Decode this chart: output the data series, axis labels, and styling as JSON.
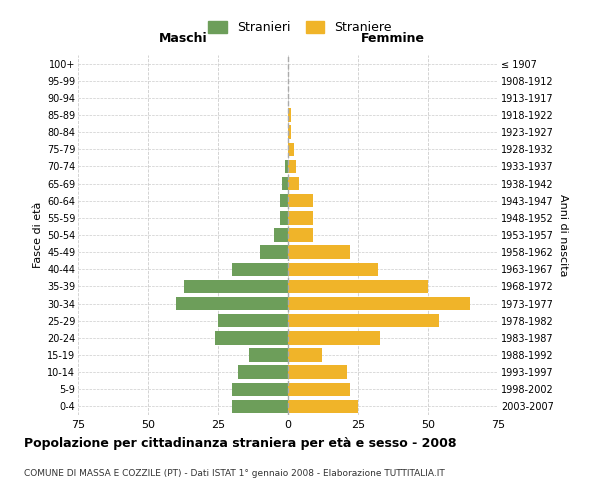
{
  "age_groups": [
    "0-4",
    "5-9",
    "10-14",
    "15-19",
    "20-24",
    "25-29",
    "30-34",
    "35-39",
    "40-44",
    "45-49",
    "50-54",
    "55-59",
    "60-64",
    "65-69",
    "70-74",
    "75-79",
    "80-84",
    "85-89",
    "90-94",
    "95-99",
    "100+"
  ],
  "birth_years": [
    "2003-2007",
    "1998-2002",
    "1993-1997",
    "1988-1992",
    "1983-1987",
    "1978-1982",
    "1973-1977",
    "1968-1972",
    "1963-1967",
    "1958-1962",
    "1953-1957",
    "1948-1952",
    "1943-1947",
    "1938-1942",
    "1933-1937",
    "1928-1932",
    "1923-1927",
    "1918-1922",
    "1913-1917",
    "1908-1912",
    "≤ 1907"
  ],
  "maschi": [
    20,
    20,
    18,
    14,
    26,
    25,
    40,
    37,
    20,
    10,
    5,
    3,
    3,
    2,
    1,
    0,
    0,
    0,
    0,
    0,
    0
  ],
  "femmine": [
    25,
    22,
    21,
    12,
    33,
    54,
    65,
    50,
    32,
    22,
    9,
    9,
    9,
    4,
    3,
    2,
    1,
    1,
    0,
    0,
    0
  ],
  "male_color": "#6d9e5a",
  "female_color": "#f0b429",
  "background_color": "#ffffff",
  "grid_color": "#cccccc",
  "zero_line_color": "#aaaaaa",
  "title": "Popolazione per cittadinanza straniera per età e sesso - 2008",
  "subtitle": "COMUNE DI MASSA E COZZILE (PT) - Dati ISTAT 1° gennaio 2008 - Elaborazione TUTTITALIA.IT",
  "xlabel_left": "Maschi",
  "xlabel_right": "Femmine",
  "ylabel_left": "Fasce di età",
  "ylabel_right": "Anni di nascita",
  "legend_male": "Stranieri",
  "legend_female": "Straniere",
  "xlim": 75
}
